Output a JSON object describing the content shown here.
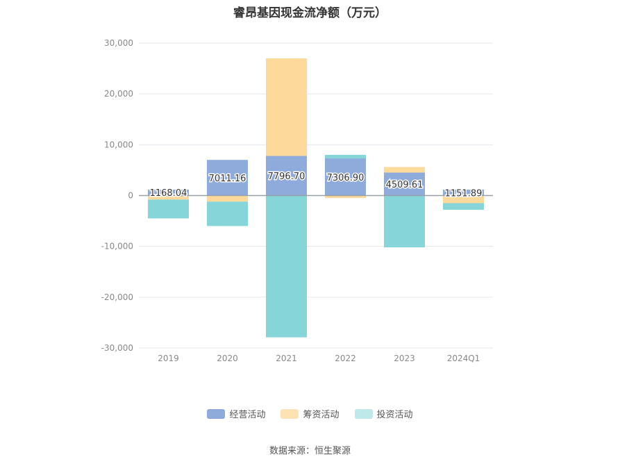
{
  "chart_data": {
    "type": "bar",
    "stacked": true,
    "title": "睿昂基因现金流净额（万元）",
    "source": "数据来源：恒生聚源",
    "categories": [
      "2019",
      "2020",
      "2021",
      "2022",
      "2023",
      "2024Q1"
    ],
    "ylim": [
      -30000,
      30000
    ],
    "yticks": [
      30000,
      20000,
      10000,
      0,
      -10000,
      -20000,
      -30000
    ],
    "ytick_labels": [
      "30,000",
      "20,000",
      "10,000",
      "0",
      "-10,000",
      "-20,000",
      "-30,000"
    ],
    "grid": true,
    "legend_position": "bottom",
    "series": [
      {
        "name": "经营活动",
        "color": "#8eabdb",
        "values": [
          1168.04,
          7011.16,
          7796.7,
          7306.9,
          4509.61,
          1151.89
        ],
        "labels": [
          "1168.04",
          "7011.16",
          "7796.70",
          "7306.90",
          "4509.61",
          "1151.89"
        ]
      },
      {
        "name": "筹资活动",
        "color": "#fdd99b",
        "values": [
          -800,
          -1200,
          19200,
          -500,
          1100,
          -1500
        ]
      },
      {
        "name": "投资活动",
        "color": "#86d5d8",
        "values": [
          -3700,
          -4800,
          -27900,
          700,
          -10200,
          -1300
        ]
      }
    ]
  }
}
